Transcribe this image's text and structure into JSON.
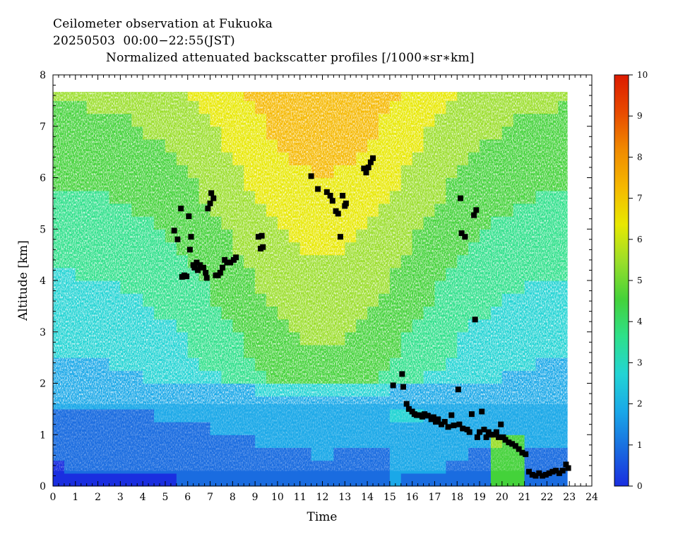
{
  "header": {
    "line1": "Ceilometer observation at Fukuoka",
    "line2": "20250503  00:00−22:55(JST)",
    "line3": "Normalized attenuated backscatter profiles [/1000∗sr∗km]"
  },
  "chart_data": {
    "type": "heatmap",
    "xlabel": "Time",
    "ylabel": "Altitude [km]",
    "xlim": [
      0,
      24
    ],
    "ylim": [
      0,
      8
    ],
    "x_ticks": [
      "0",
      "1",
      "2",
      "3",
      "4",
      "5",
      "6",
      "7",
      "8",
      "9",
      "10",
      "11",
      "12",
      "13",
      "14",
      "15",
      "16",
      "17",
      "18",
      "19",
      "20",
      "21",
      "22",
      "23",
      "24"
    ],
    "y_ticks": [
      "0",
      "1",
      "2",
      "3",
      "4",
      "5",
      "6",
      "7",
      "8"
    ],
    "data_extent": {
      "x": [
        0,
        22.9
      ],
      "y": [
        0,
        7.67
      ]
    },
    "colorbar": {
      "range": [
        0,
        10
      ],
      "ticks": [
        "0",
        "1",
        "2",
        "3",
        "4",
        "5",
        "6",
        "7",
        "8",
        "9",
        "10"
      ],
      "stops": [
        "#1a2ee0",
        "#1a6ce0",
        "#1aa8e8",
        "#22d4d4",
        "#2ee08a",
        "#44d23a",
        "#9ade2a",
        "#e8e800",
        "#f5b800",
        "#f08a00",
        "#e84a00",
        "#dc1a00"
      ]
    },
    "cloud_base_points": [
      [
        5.4,
        4.97
      ],
      [
        5.55,
        4.8
      ],
      [
        5.7,
        5.4
      ],
      [
        5.75,
        4.07
      ],
      [
        5.85,
        4.1
      ],
      [
        5.95,
        4.08
      ],
      [
        6.05,
        5.25
      ],
      [
        6.1,
        4.6
      ],
      [
        6.15,
        4.85
      ],
      [
        6.25,
        4.3
      ],
      [
        6.3,
        4.25
      ],
      [
        6.4,
        4.35
      ],
      [
        6.45,
        4.2
      ],
      [
        6.55,
        4.3
      ],
      [
        6.7,
        4.25
      ],
      [
        6.8,
        4.15
      ],
      [
        6.85,
        4.05
      ],
      [
        6.9,
        5.4
      ],
      [
        7.0,
        5.5
      ],
      [
        7.05,
        5.7
      ],
      [
        7.15,
        5.6
      ],
      [
        7.25,
        4.1
      ],
      [
        7.35,
        4.1
      ],
      [
        7.45,
        4.15
      ],
      [
        7.55,
        4.25
      ],
      [
        7.65,
        4.4
      ],
      [
        7.75,
        4.35
      ],
      [
        7.9,
        4.35
      ],
      [
        8.05,
        4.4
      ],
      [
        8.15,
        4.45
      ],
      [
        9.15,
        4.85
      ],
      [
        9.25,
        4.62
      ],
      [
        9.3,
        4.87
      ],
      [
        9.35,
        4.65
      ],
      [
        11.5,
        6.03
      ],
      [
        11.8,
        5.78
      ],
      [
        12.2,
        5.72
      ],
      [
        12.35,
        5.65
      ],
      [
        12.45,
        5.55
      ],
      [
        12.6,
        5.35
      ],
      [
        12.7,
        5.3
      ],
      [
        12.8,
        4.85
      ],
      [
        12.9,
        5.65
      ],
      [
        13.0,
        5.45
      ],
      [
        13.05,
        5.5
      ],
      [
        13.85,
        6.18
      ],
      [
        13.95,
        6.1
      ],
      [
        14.05,
        6.2
      ],
      [
        14.15,
        6.3
      ],
      [
        14.25,
        6.38
      ],
      [
        15.15,
        1.96
      ],
      [
        15.55,
        2.18
      ],
      [
        15.6,
        1.93
      ],
      [
        15.75,
        1.6
      ],
      [
        15.85,
        1.5
      ],
      [
        16.0,
        1.45
      ],
      [
        16.1,
        1.4
      ],
      [
        16.2,
        1.38
      ],
      [
        16.3,
        1.38
      ],
      [
        16.45,
        1.35
      ],
      [
        16.55,
        1.4
      ],
      [
        16.7,
        1.37
      ],
      [
        16.85,
        1.3
      ],
      [
        16.95,
        1.34
      ],
      [
        17.05,
        1.25
      ],
      [
        17.15,
        1.3
      ],
      [
        17.3,
        1.2
      ],
      [
        17.45,
        1.25
      ],
      [
        17.6,
        1.15
      ],
      [
        17.75,
        1.38
      ],
      [
        17.85,
        1.18
      ],
      [
        18.05,
        1.88
      ],
      [
        18.1,
        1.2
      ],
      [
        18.15,
        5.6
      ],
      [
        18.2,
        4.92
      ],
      [
        18.25,
        1.12
      ],
      [
        18.35,
        4.85
      ],
      [
        18.45,
        1.1
      ],
      [
        18.55,
        1.05
      ],
      [
        18.65,
        1.4
      ],
      [
        18.75,
        5.27
      ],
      [
        18.8,
        3.24
      ],
      [
        18.85,
        5.37
      ],
      [
        18.9,
        0.95
      ],
      [
        19.0,
        1.05
      ],
      [
        19.1,
        1.45
      ],
      [
        19.2,
        1.1
      ],
      [
        19.3,
        0.95
      ],
      [
        19.4,
        1.05
      ],
      [
        19.5,
        1.0
      ],
      [
        19.6,
        1.0
      ],
      [
        19.75,
        1.05
      ],
      [
        19.85,
        0.95
      ],
      [
        19.95,
        1.2
      ],
      [
        20.05,
        0.95
      ],
      [
        20.15,
        0.9
      ],
      [
        20.3,
        0.85
      ],
      [
        20.45,
        0.82
      ],
      [
        20.6,
        0.78
      ],
      [
        20.75,
        0.72
      ],
      [
        20.9,
        0.65
      ],
      [
        21.05,
        0.62
      ],
      [
        21.2,
        0.28
      ],
      [
        21.35,
        0.22
      ],
      [
        21.5,
        0.2
      ],
      [
        21.65,
        0.25
      ],
      [
        21.8,
        0.2
      ],
      [
        21.95,
        0.22
      ],
      [
        22.1,
        0.25
      ],
      [
        22.25,
        0.28
      ],
      [
        22.4,
        0.3
      ],
      [
        22.55,
        0.25
      ],
      [
        22.7,
        0.3
      ],
      [
        22.85,
        0.42
      ],
      [
        22.95,
        0.35
      ]
    ]
  }
}
